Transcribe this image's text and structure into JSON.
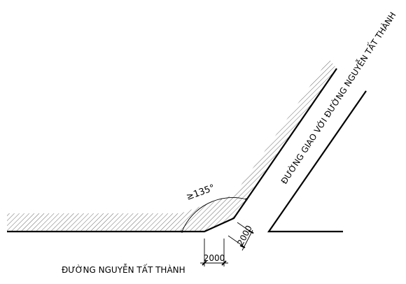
{
  "labels": {
    "road_main": "ĐƯỜNG NGUYỄN TẤT THÀNH",
    "road_intersection": "ĐƯỜNG GIAO VỚI ĐƯỜNG NGUYỄN TẤT THÀNH",
    "angle": "≥135°",
    "dim_horizontal": "2000",
    "dim_diagonal": "2000"
  },
  "colors": {
    "line": "#000000",
    "hatch": "#555555",
    "background": "#ffffff"
  }
}
